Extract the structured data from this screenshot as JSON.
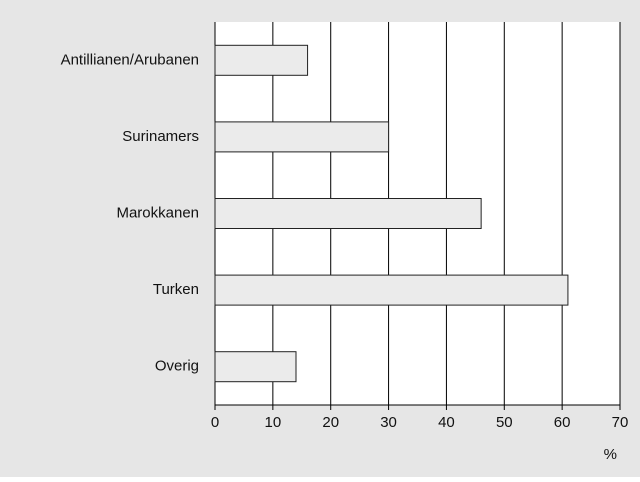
{
  "chart_data": {
    "type": "barh",
    "categories": [
      "Antillianen/Arubanen",
      "Surinamers",
      "Marokkanen",
      "Turken",
      "Overig"
    ],
    "values": [
      16,
      30,
      46,
      61,
      14
    ],
    "color": "#ebebeb",
    "xlim": [
      0,
      70
    ],
    "xticks": [
      0,
      10,
      20,
      30,
      40,
      50,
      60,
      70
    ],
    "xlabel": "%",
    "grid": true
  }
}
